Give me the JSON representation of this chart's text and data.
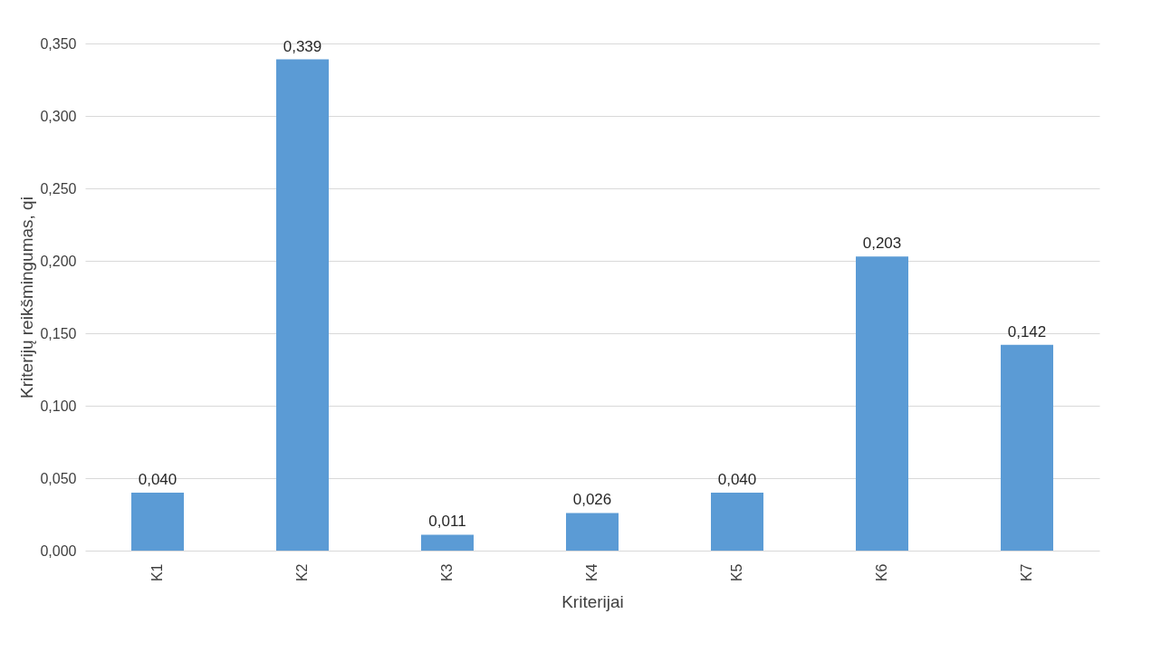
{
  "chart_data": {
    "type": "bar",
    "xlabel": "Kriterijai",
    "ylabel": "Kriterijų reikšmingumas, qi",
    "categories": [
      "K1",
      "K2",
      "K3",
      "K4",
      "K5",
      "K6",
      "K7"
    ],
    "values": [
      0.04,
      0.339,
      0.011,
      0.026,
      0.04,
      0.203,
      0.142
    ],
    "value_labels": [
      "0,040",
      "0,339",
      "0,011",
      "0,026",
      "0,040",
      "0,203",
      "0,142"
    ],
    "color": "#5b9bd5",
    "ylim": [
      0,
      0.35
    ],
    "yticks": [
      {
        "value": 0,
        "label": "0,000"
      },
      {
        "value": 0.05,
        "label": "0,050"
      },
      {
        "value": 0.1,
        "label": "0,100"
      },
      {
        "value": 0.15,
        "label": "0,150"
      },
      {
        "value": 0.2,
        "label": "0,200"
      },
      {
        "value": 0.25,
        "label": "0,250"
      },
      {
        "value": 0.3,
        "label": "0,300"
      },
      {
        "value": 0.35,
        "label": "0,350"
      }
    ],
    "grid": "y"
  }
}
